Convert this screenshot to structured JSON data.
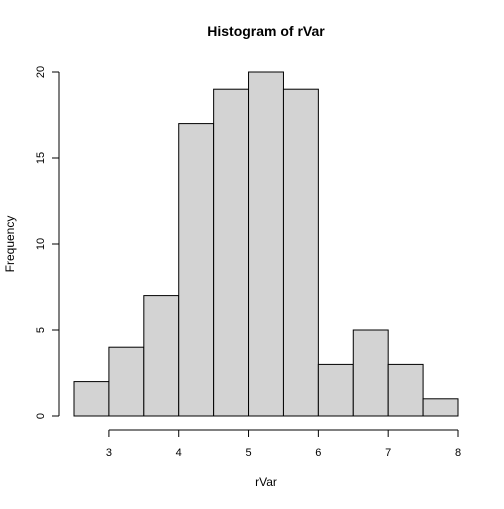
{
  "chart_data": {
    "type": "bar",
    "title": "Histogram of rVar",
    "xlabel": "rVar",
    "ylabel": "Frequency",
    "bins": [
      {
        "from": 2.5,
        "to": 3.0,
        "count": 2
      },
      {
        "from": 3.0,
        "to": 3.5,
        "count": 4
      },
      {
        "from": 3.5,
        "to": 4.0,
        "count": 7
      },
      {
        "from": 4.0,
        "to": 4.5,
        "count": 17
      },
      {
        "from": 4.5,
        "to": 5.0,
        "count": 19
      },
      {
        "from": 5.0,
        "to": 5.5,
        "count": 20
      },
      {
        "from": 5.5,
        "to": 6.0,
        "count": 19
      },
      {
        "from": 6.0,
        "to": 6.5,
        "count": 3
      },
      {
        "from": 6.5,
        "to": 7.0,
        "count": 5
      },
      {
        "from": 7.0,
        "to": 7.5,
        "count": 3
      },
      {
        "from": 7.5,
        "to": 8.0,
        "count": 1
      }
    ],
    "xlim": [
      2.5,
      8.0
    ],
    "ylim": [
      0,
      20
    ],
    "x_ticks": [
      3,
      4,
      5,
      6,
      7,
      8
    ],
    "y_ticks": [
      0,
      5,
      10,
      15,
      20
    ],
    "bar_color": "#d3d3d3",
    "grid": false,
    "legend": "none"
  }
}
